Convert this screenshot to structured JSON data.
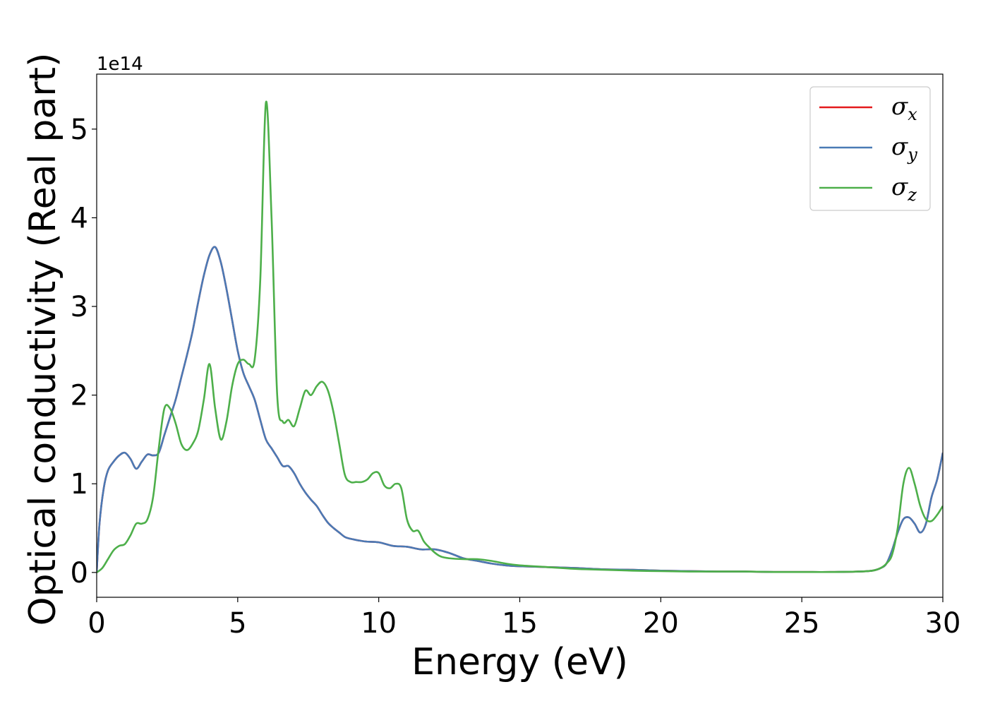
{
  "chart_data": {
    "type": "line",
    "xlabel": "Energy (eV)",
    "ylabel": "Optical conductivity (Real part)",
    "y_offset_label": "1e14",
    "xlim": [
      0,
      30
    ],
    "ylim": [
      -0.28,
      5.62
    ],
    "x_ticks": [
      0,
      5,
      10,
      15,
      20,
      25,
      30
    ],
    "y_ticks": [
      0,
      1,
      2,
      3,
      4,
      5
    ],
    "grid": false,
    "legend_position": "top-right",
    "series": [
      {
        "name": "σx",
        "legend_symbol": "σ",
        "legend_subscript": "x",
        "color": "#e41a1c",
        "x": [
          0,
          0.1,
          0.25,
          0.4,
          0.6,
          0.8,
          1.0,
          1.2,
          1.4,
          1.6,
          1.8,
          2.0,
          2.2,
          2.4,
          2.6,
          2.8,
          3.0,
          3.2,
          3.4,
          3.6,
          3.8,
          4.0,
          4.2,
          4.4,
          4.6,
          4.8,
          5.0,
          5.2,
          5.4,
          5.6,
          5.8,
          6.0,
          6.2,
          6.4,
          6.6,
          6.8,
          7.0,
          7.2,
          7.4,
          7.6,
          7.8,
          8.0,
          8.2,
          8.4,
          8.6,
          8.8,
          9.0,
          9.5,
          10.0,
          10.5,
          11.0,
          11.5,
          12.0,
          12.5,
          13.0,
          13.5,
          14.0,
          14.5,
          15.0,
          16.0,
          17.0,
          18.0,
          19.0,
          20.0,
          21.0,
          22.0,
          23.0,
          24.0,
          25.0,
          26.0,
          27.0,
          27.5,
          27.8,
          28.0,
          28.2,
          28.4,
          28.6,
          28.8,
          29.0,
          29.2,
          29.4,
          29.6,
          29.8,
          30.0
        ],
        "values": [
          0,
          0.55,
          0.95,
          1.15,
          1.25,
          1.32,
          1.35,
          1.28,
          1.17,
          1.25,
          1.33,
          1.32,
          1.35,
          1.55,
          1.75,
          1.95,
          2.2,
          2.45,
          2.72,
          3.05,
          3.35,
          3.58,
          3.67,
          3.5,
          3.2,
          2.85,
          2.5,
          2.25,
          2.1,
          1.95,
          1.72,
          1.5,
          1.4,
          1.3,
          1.2,
          1.2,
          1.12,
          1.0,
          0.9,
          0.82,
          0.75,
          0.65,
          0.56,
          0.5,
          0.45,
          0.4,
          0.38,
          0.35,
          0.34,
          0.3,
          0.29,
          0.26,
          0.26,
          0.22,
          0.16,
          0.13,
          0.1,
          0.08,
          0.07,
          0.06,
          0.05,
          0.035,
          0.03,
          0.02,
          0.015,
          0.01,
          0.01,
          0.005,
          0.005,
          0.005,
          0.01,
          0.02,
          0.05,
          0.1,
          0.25,
          0.45,
          0.6,
          0.62,
          0.55,
          0.45,
          0.55,
          0.85,
          1.05,
          1.35
        ]
      },
      {
        "name": "σy",
        "legend_symbol": "σ",
        "legend_subscript": "y",
        "color": "#4a7ab5",
        "x": [
          0,
          0.1,
          0.25,
          0.4,
          0.6,
          0.8,
          1.0,
          1.2,
          1.4,
          1.6,
          1.8,
          2.0,
          2.2,
          2.4,
          2.6,
          2.8,
          3.0,
          3.2,
          3.4,
          3.6,
          3.8,
          4.0,
          4.2,
          4.4,
          4.6,
          4.8,
          5.0,
          5.2,
          5.4,
          5.6,
          5.8,
          6.0,
          6.2,
          6.4,
          6.6,
          6.8,
          7.0,
          7.2,
          7.4,
          7.6,
          7.8,
          8.0,
          8.2,
          8.4,
          8.6,
          8.8,
          9.0,
          9.5,
          10.0,
          10.5,
          11.0,
          11.5,
          12.0,
          12.5,
          13.0,
          13.5,
          14.0,
          14.5,
          15.0,
          16.0,
          17.0,
          18.0,
          19.0,
          20.0,
          21.0,
          22.0,
          23.0,
          24.0,
          25.0,
          26.0,
          27.0,
          27.5,
          27.8,
          28.0,
          28.2,
          28.4,
          28.6,
          28.8,
          29.0,
          29.2,
          29.4,
          29.6,
          29.8,
          30.0
        ],
        "values": [
          0,
          0.55,
          0.95,
          1.15,
          1.25,
          1.32,
          1.35,
          1.28,
          1.17,
          1.25,
          1.33,
          1.32,
          1.35,
          1.55,
          1.75,
          1.95,
          2.2,
          2.45,
          2.72,
          3.05,
          3.35,
          3.58,
          3.67,
          3.5,
          3.2,
          2.85,
          2.5,
          2.25,
          2.1,
          1.95,
          1.72,
          1.5,
          1.4,
          1.3,
          1.2,
          1.2,
          1.12,
          1.0,
          0.9,
          0.82,
          0.75,
          0.65,
          0.56,
          0.5,
          0.45,
          0.4,
          0.38,
          0.35,
          0.34,
          0.3,
          0.29,
          0.26,
          0.26,
          0.22,
          0.16,
          0.13,
          0.1,
          0.08,
          0.07,
          0.06,
          0.05,
          0.035,
          0.03,
          0.02,
          0.015,
          0.01,
          0.01,
          0.005,
          0.005,
          0.005,
          0.01,
          0.02,
          0.05,
          0.1,
          0.25,
          0.45,
          0.6,
          0.62,
          0.55,
          0.45,
          0.55,
          0.85,
          1.05,
          1.35
        ]
      },
      {
        "name": "σz",
        "legend_symbol": "σ",
        "legend_subscript": "z",
        "color": "#4daf4a",
        "x": [
          0,
          0.2,
          0.4,
          0.6,
          0.8,
          1.0,
          1.2,
          1.4,
          1.6,
          1.8,
          2.0,
          2.2,
          2.4,
          2.6,
          2.8,
          3.0,
          3.2,
          3.4,
          3.6,
          3.8,
          4.0,
          4.2,
          4.4,
          4.6,
          4.8,
          5.0,
          5.2,
          5.4,
          5.6,
          5.8,
          6.0,
          6.2,
          6.4,
          6.6,
          6.8,
          7.0,
          7.2,
          7.4,
          7.6,
          7.8,
          8.0,
          8.2,
          8.4,
          8.6,
          8.8,
          9.0,
          9.2,
          9.4,
          9.6,
          9.8,
          10.0,
          10.2,
          10.4,
          10.6,
          10.8,
          11.0,
          11.2,
          11.4,
          11.6,
          11.8,
          12.0,
          12.2,
          12.5,
          13.0,
          13.5,
          14.0,
          14.5,
          15.0,
          16.0,
          17.0,
          18.0,
          19.0,
          20.0,
          21.0,
          22.0,
          23.0,
          24.0,
          25.0,
          26.0,
          27.0,
          27.5,
          27.8,
          28.0,
          28.2,
          28.4,
          28.6,
          28.8,
          29.0,
          29.2,
          29.4,
          29.6,
          29.8,
          30.0
        ],
        "values": [
          0,
          0.05,
          0.15,
          0.25,
          0.3,
          0.32,
          0.42,
          0.55,
          0.55,
          0.6,
          0.85,
          1.4,
          1.85,
          1.85,
          1.68,
          1.45,
          1.38,
          1.45,
          1.6,
          1.95,
          2.35,
          1.85,
          1.5,
          1.7,
          2.1,
          2.35,
          2.4,
          2.35,
          2.4,
          3.3,
          5.3,
          4.0,
          2.0,
          1.7,
          1.72,
          1.65,
          1.85,
          2.05,
          2.0,
          2.1,
          2.15,
          2.05,
          1.8,
          1.45,
          1.1,
          1.02,
          1.02,
          1.02,
          1.05,
          1.12,
          1.12,
          0.98,
          0.95,
          1.0,
          0.95,
          0.6,
          0.47,
          0.47,
          0.35,
          0.28,
          0.22,
          0.18,
          0.16,
          0.15,
          0.15,
          0.13,
          0.1,
          0.08,
          0.06,
          0.04,
          0.03,
          0.02,
          0.015,
          0.01,
          0.01,
          0.01,
          0.005,
          0.005,
          0.005,
          0.01,
          0.02,
          0.05,
          0.1,
          0.2,
          0.5,
          1.0,
          1.18,
          1.0,
          0.75,
          0.6,
          0.58,
          0.65,
          0.75
        ]
      }
    ]
  }
}
